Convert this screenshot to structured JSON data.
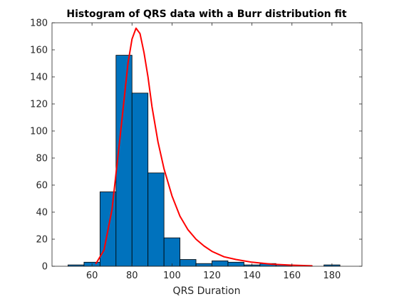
{
  "chart_data": {
    "type": "bar",
    "title": "Histogram of QRS data with a Burr distribution fit",
    "xlabel": "QRS Duration",
    "ylabel": "",
    "xlim": [
      40,
      195
    ],
    "ylim": [
      0,
      180
    ],
    "xticks": [
      60,
      80,
      100,
      120,
      140,
      160,
      180
    ],
    "yticks": [
      0,
      20,
      40,
      60,
      80,
      100,
      120,
      140,
      160,
      180
    ],
    "grid": false,
    "bin_edges": [
      48,
      56,
      64,
      72,
      80,
      88,
      96,
      104,
      112,
      120,
      128,
      136,
      144,
      152,
      160,
      168,
      176,
      184,
      192
    ],
    "values": [
      1,
      3,
      55,
      156,
      128,
      69,
      21,
      5,
      2,
      4,
      3,
      1,
      2,
      1,
      0,
      0,
      1,
      0
    ],
    "bar_color": "#0072BD",
    "series": [
      {
        "type": "line",
        "color": "#FF0000",
        "x": [
          62,
          66,
          70,
          74,
          78,
          80,
          82,
          84,
          86,
          88,
          90,
          93,
          96,
          100,
          104,
          108,
          112,
          116,
          120,
          126,
          132,
          140,
          150,
          160,
          170
        ],
        "y": [
          2,
          12,
          42,
          95,
          150,
          168,
          176,
          172,
          158,
          140,
          118,
          92,
          72,
          52,
          37,
          27,
          20,
          15,
          11,
          7,
          5,
          3,
          1.5,
          0.8,
          0.3
        ]
      }
    ]
  }
}
